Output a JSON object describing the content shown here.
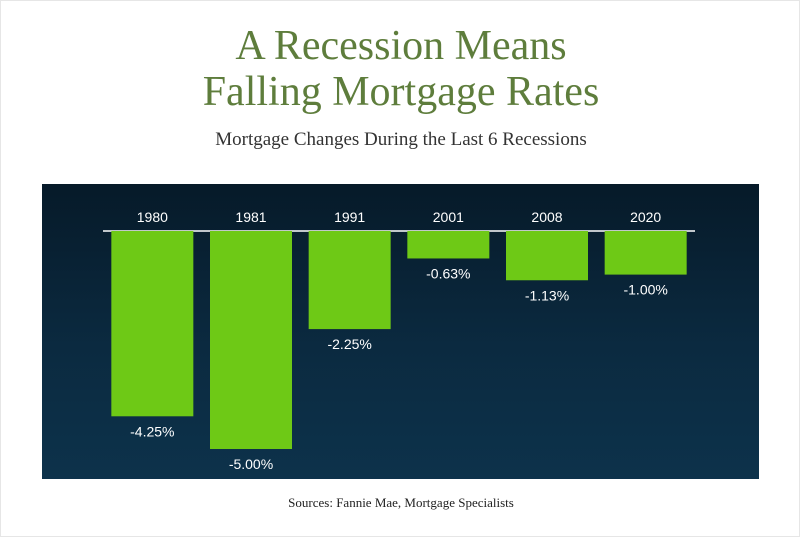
{
  "header": {
    "title_line1": "A Recession Means",
    "title_line2": "Falling Mortgage Rates",
    "subtitle": "Mortgage Changes During the Last 6 Recessions"
  },
  "footer": {
    "source": "Sources: Fannie Mae, Mortgage Specialists"
  },
  "colors": {
    "title": "#5e7d3c",
    "bar": "#6ec916",
    "panel_top": "#061a29",
    "panel_bottom": "#0d324b",
    "baseline": "#ffffff",
    "label": "#ffffff"
  },
  "chart_data": {
    "type": "bar",
    "title": "",
    "xlabel": "",
    "ylabel": "",
    "categories": [
      "1980",
      "1981",
      "1991",
      "2001",
      "2008",
      "2020"
    ],
    "values": [
      -4.25,
      -5.0,
      -2.25,
      -0.63,
      -1.13,
      -1.0
    ],
    "value_labels": [
      "-4.25%",
      "-5.00%",
      "-2.25%",
      "-0.63%",
      "-1.13%",
      "-1.00%"
    ],
    "ylim": [
      -5.0,
      0
    ],
    "grid": false,
    "legend": "none",
    "category_axis_position": "top"
  }
}
